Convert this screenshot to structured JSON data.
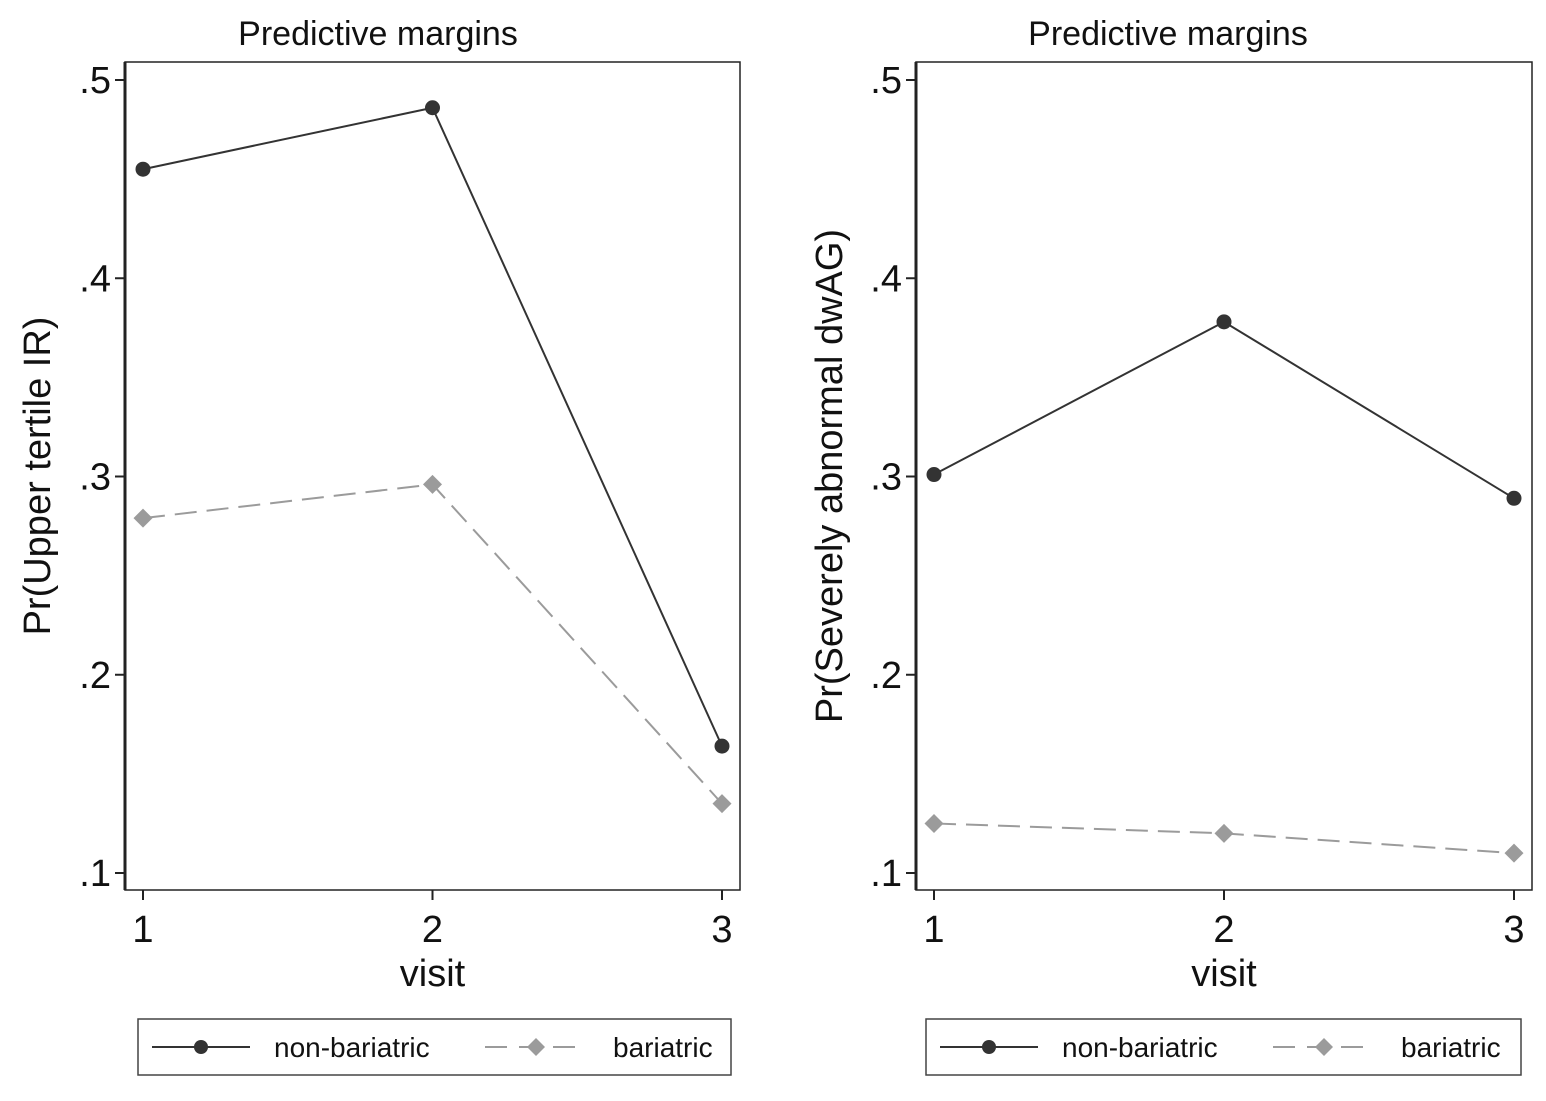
{
  "chart_data": [
    {
      "type": "line",
      "title": "Predictive margins",
      "xlabel": "visit",
      "ylabel": "Pr(Upper tertile IR)",
      "categories": [
        "1",
        "2",
        "3"
      ],
      "x": [
        1,
        2,
        3
      ],
      "xlim": [
        1,
        3
      ],
      "ylim": [
        0.1,
        0.5
      ],
      "xticks": [
        "1",
        "2",
        "3"
      ],
      "yticks": [
        ".1",
        ".2",
        ".3",
        ".4",
        ".5"
      ],
      "grid": false,
      "legend_position": "bottom",
      "series": [
        {
          "name": "non-bariatric",
          "values": [
            0.455,
            0.486,
            0.164
          ],
          "color": "#333333",
          "line_style": "solid",
          "marker": "circle"
        },
        {
          "name": "bariatric",
          "values": [
            0.279,
            0.296,
            0.135
          ],
          "color": "#9b9b9b",
          "line_style": "dashed",
          "marker": "diamond"
        }
      ]
    },
    {
      "type": "line",
      "title": "Predictive margins",
      "xlabel": "visit",
      "ylabel": "Pr(Severely abnormal dwAG)",
      "categories": [
        "1",
        "2",
        "3"
      ],
      "x": [
        1,
        2,
        3
      ],
      "xlim": [
        1,
        3
      ],
      "ylim": [
        0.1,
        0.5
      ],
      "xticks": [
        "1",
        "2",
        "3"
      ],
      "yticks": [
        ".1",
        ".2",
        ".3",
        ".4",
        ".5"
      ],
      "grid": false,
      "legend_position": "bottom",
      "series": [
        {
          "name": "non-bariatric",
          "values": [
            0.301,
            0.378,
            0.289
          ],
          "color": "#333333",
          "line_style": "solid",
          "marker": "circle"
        },
        {
          "name": "bariatric",
          "values": [
            0.125,
            0.12,
            0.11
          ],
          "color": "#9b9b9b",
          "line_style": "dashed",
          "marker": "diamond"
        }
      ]
    }
  ]
}
